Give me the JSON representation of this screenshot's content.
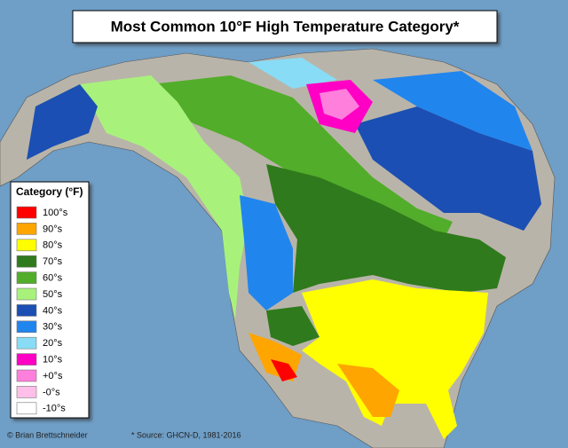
{
  "title": "Most Common 10°F High Temperature Category*",
  "legend": {
    "title": "Category (°F)",
    "items": [
      {
        "label": "100°s",
        "color": "#ff0000"
      },
      {
        "label": "90°s",
        "color": "#ffa500"
      },
      {
        "label": "80°s",
        "color": "#ffff00"
      },
      {
        "label": "70°s",
        "color": "#2f7a1c"
      },
      {
        "label": "60°s",
        "color": "#52ad2a"
      },
      {
        "label": "50°s",
        "color": "#a8f27c"
      },
      {
        "label": "40°s",
        "color": "#1b4fb3"
      },
      {
        "label": "30°s",
        "color": "#2185ee"
      },
      {
        "label": "20°s",
        "color": "#88dcf6"
      },
      {
        "label": "10°s",
        "color": "#ff00c4"
      },
      {
        "label": "+0°s",
        "color": "#ff7fdc"
      },
      {
        "label": "-0°s",
        "color": "#ffbfe8"
      },
      {
        "label": "-10°s",
        "color": "#ffffff"
      }
    ]
  },
  "credit": "© Brian Brettschneider",
  "source": "* Source: GHCN-D, 1981-2016"
}
